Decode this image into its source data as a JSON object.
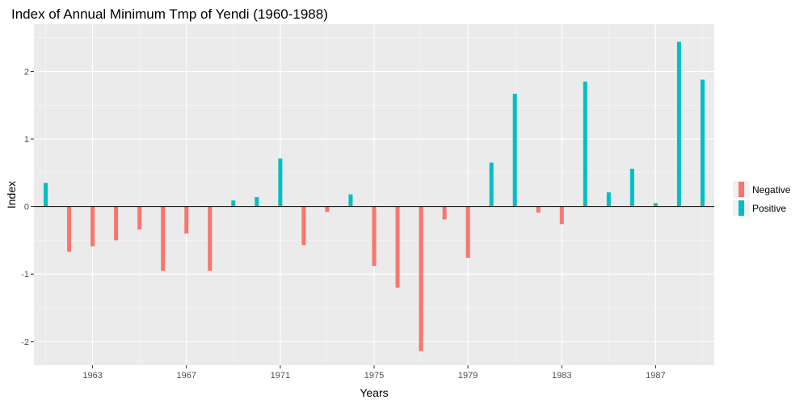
{
  "chart_data": {
    "type": "bar",
    "title": "Index of Annual Minimum Tmp of Yendi (1960-1988)",
    "xlabel": "Years",
    "ylabel": "Index",
    "xlim": [
      1960.5,
      1989.5
    ],
    "ylim": [
      -2.35,
      2.7
    ],
    "x_ticks": [
      1963,
      1967,
      1971,
      1975,
      1979,
      1983,
      1987
    ],
    "y_ticks": [
      -2,
      -1,
      0,
      1,
      2
    ],
    "grid": true,
    "legend_position": "right",
    "colors": {
      "Negative": "#F8766D",
      "Positive": "#00BFC4"
    },
    "series": [
      {
        "name": "Negative",
        "color": "#F8766D"
      },
      {
        "name": "Positive",
        "color": "#00BFC4"
      }
    ],
    "x": [
      1961,
      1962,
      1963,
      1964,
      1965,
      1966,
      1967,
      1968,
      1969,
      1970,
      1971,
      1972,
      1973,
      1974,
      1975,
      1976,
      1977,
      1978,
      1979,
      1980,
      1981,
      1982,
      1983,
      1984,
      1985,
      1986,
      1987,
      1988,
      1989
    ],
    "values": [
      0.35,
      -0.67,
      -0.59,
      -0.5,
      -0.34,
      -0.95,
      -0.4,
      -0.95,
      0.09,
      0.14,
      0.71,
      -0.57,
      -0.08,
      0.18,
      -0.88,
      -1.2,
      -2.14,
      -0.19,
      -0.76,
      0.65,
      1.67,
      -0.09,
      -0.26,
      1.85,
      0.21,
      0.56,
      0.05,
      2.44,
      1.88
    ],
    "sign": [
      "Positive",
      "Negative",
      "Negative",
      "Negative",
      "Negative",
      "Negative",
      "Negative",
      "Negative",
      "Positive",
      "Positive",
      "Positive",
      "Negative",
      "Negative",
      "Positive",
      "Negative",
      "Negative",
      "Negative",
      "Negative",
      "Negative",
      "Positive",
      "Positive",
      "Negative",
      "Negative",
      "Positive",
      "Positive",
      "Positive",
      "Positive",
      "Positive",
      "Positive"
    ]
  }
}
